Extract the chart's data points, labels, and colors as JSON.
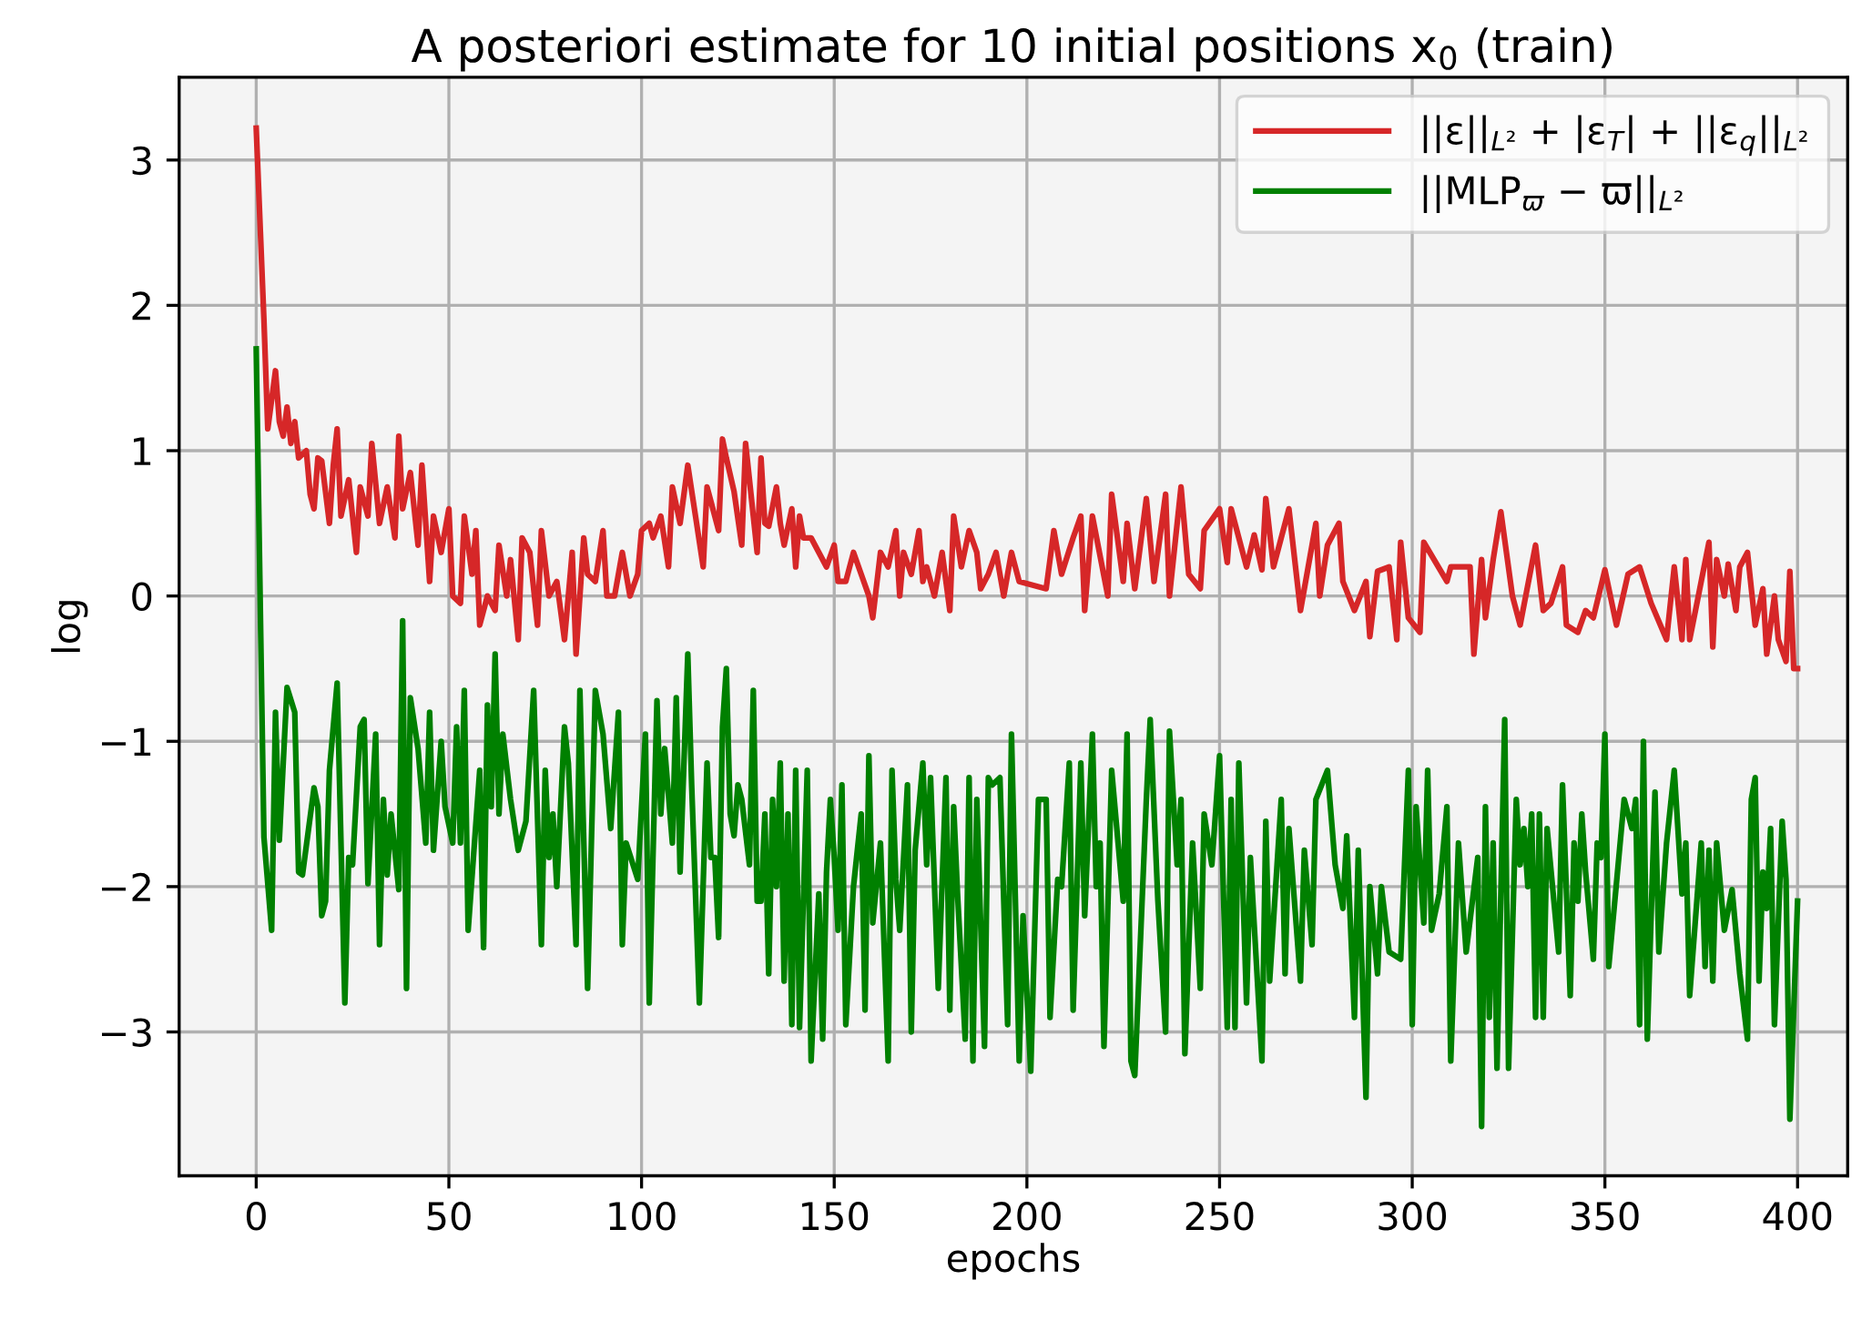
{
  "chart_data": {
    "type": "line",
    "title": "A posteriori estimate for 10 initial positions x$_{0}$ (train)",
    "xlabel": "epochs",
    "ylabel": "log",
    "xlim": [
      -20,
      413
    ],
    "ylim": [
      -3.99,
      3.57
    ],
    "xticks": [
      0,
      50,
      100,
      150,
      200,
      250,
      300,
      350,
      400
    ],
    "yticks": [
      {
        "value": -3,
        "label": "−3"
      },
      {
        "value": -2,
        "label": "−2"
      },
      {
        "value": -1,
        "label": "−1"
      },
      0,
      1,
      2,
      3
    ],
    "grid": true,
    "legend": "top right",
    "line_style": "solid",
    "marker": "none",
    "series": [
      {
        "name": "||ε||$_{L²}$ + |ε$_{T}$| + ||ε$_{q}$||$_{L²}$",
        "color": "#d62728",
        "x": [
          0,
          2,
          3,
          5,
          6,
          7,
          8,
          9,
          10,
          11,
          13,
          14,
          15,
          16,
          17,
          19,
          20,
          21,
          22,
          24,
          26,
          27,
          29,
          30,
          32,
          34,
          36,
          37,
          38,
          40,
          42,
          43,
          45,
          46,
          48,
          50,
          51,
          53,
          54,
          56,
          57,
          58,
          60,
          62,
          63,
          65,
          66,
          68,
          69,
          71,
          73,
          74,
          76,
          78,
          80,
          82,
          83,
          85,
          86,
          88,
          90,
          91,
          93,
          95,
          97,
          99,
          100,
          102,
          103,
          105,
          107,
          108,
          110,
          112,
          114,
          116,
          117,
          118,
          120,
          121,
          122,
          124,
          126,
          127,
          129,
          130,
          131,
          132,
          133,
          135,
          136,
          137,
          139,
          140,
          141,
          142,
          144,
          146,
          148,
          150,
          151,
          153,
          155,
          157,
          159,
          160,
          162,
          164,
          166,
          167,
          168,
          170,
          172,
          173,
          174,
          176,
          178,
          180,
          181,
          183,
          185,
          187,
          188,
          190,
          192,
          194,
          196,
          198,
          205,
          207,
          209,
          212,
          214,
          215,
          217,
          221,
          222,
          225,
          226,
          228,
          231,
          233,
          236,
          237,
          240,
          242,
          245,
          246,
          250,
          252,
          253,
          257,
          259,
          261,
          262,
          264,
          268,
          271,
          275,
          276,
          278,
          281,
          282,
          285,
          288,
          289,
          291,
          294,
          296,
          297,
          299,
          302,
          303,
          309,
          310,
          312,
          315,
          316,
          318,
          319,
          321,
          323,
          326,
          328,
          332,
          334,
          336,
          339,
          340,
          343,
          345,
          347,
          350,
          353,
          356,
          359,
          362,
          366,
          368,
          370,
          371,
          372,
          375,
          377,
          378,
          379,
          381,
          382,
          384,
          385,
          387,
          389,
          391,
          392,
          394,
          395,
          397,
          398,
          399,
          400
        ],
        "values": [
          3.22,
          1.9,
          1.15,
          1.55,
          1.2,
          1.1,
          1.3,
          1.05,
          1.2,
          0.95,
          1.0,
          0.7,
          0.6,
          0.95,
          0.93,
          0.5,
          0.9,
          1.15,
          0.55,
          0.8,
          0.3,
          0.75,
          0.55,
          1.05,
          0.5,
          0.75,
          0.4,
          1.1,
          0.6,
          0.85,
          0.35,
          0.9,
          0.1,
          0.55,
          0.3,
          0.6,
          0.0,
          -0.05,
          0.55,
          0.15,
          0.45,
          -0.2,
          0.0,
          -0.1,
          0.35,
          0.0,
          0.25,
          -0.3,
          0.4,
          0.3,
          -0.2,
          0.45,
          0.0,
          0.1,
          -0.3,
          0.3,
          -0.4,
          0.4,
          0.15,
          0.1,
          0.45,
          0.0,
          0.0,
          0.3,
          0.0,
          0.15,
          0.45,
          0.5,
          0.4,
          0.55,
          0.2,
          0.75,
          0.5,
          0.9,
          0.55,
          0.2,
          0.75,
          0.65,
          0.45,
          1.08,
          0.95,
          0.72,
          0.35,
          1.05,
          0.55,
          0.3,
          0.95,
          0.5,
          0.48,
          0.75,
          0.5,
          0.35,
          0.6,
          0.2,
          0.55,
          0.4,
          0.4,
          0.3,
          0.2,
          0.35,
          0.1,
          0.1,
          0.3,
          0.15,
          0.0,
          -0.15,
          0.3,
          0.2,
          0.45,
          0.0,
          0.3,
          0.15,
          0.45,
          0.1,
          0.2,
          0.0,
          0.3,
          -0.1,
          0.55,
          0.2,
          0.45,
          0.3,
          0.05,
          0.15,
          0.3,
          0.0,
          0.3,
          0.1,
          0.05,
          0.45,
          0.15,
          0.4,
          0.55,
          -0.1,
          0.55,
          0.0,
          0.7,
          0.1,
          0.5,
          0.05,
          0.67,
          0.1,
          0.7,
          0.0,
          0.75,
          0.15,
          0.05,
          0.45,
          0.6,
          0.23,
          0.6,
          0.2,
          0.42,
          0.18,
          0.67,
          0.2,
          0.6,
          -0.1,
          0.5,
          0.0,
          0.35,
          0.5,
          0.1,
          -0.1,
          0.1,
          -0.28,
          0.17,
          0.2,
          -0.3,
          0.37,
          -0.15,
          -0.25,
          0.37,
          0.1,
          0.2,
          0.2,
          0.2,
          -0.4,
          0.25,
          -0.15,
          0.25,
          0.58,
          0.0,
          -0.2,
          0.35,
          -0.1,
          -0.05,
          0.2,
          -0.2,
          -0.25,
          -0.1,
          -0.15,
          0.18,
          -0.2,
          0.15,
          0.2,
          -0.05,
          -0.3,
          0.2,
          -0.3,
          0.25,
          -0.3,
          0.1,
          0.37,
          -0.35,
          0.25,
          0.0,
          0.22,
          -0.1,
          0.2,
          0.3,
          -0.2,
          0.05,
          -0.4,
          0.0,
          -0.3,
          -0.45,
          0.17,
          -0.5,
          -0.5
        ]
      },
      {
        "name": "||MLP$_{ϖ}$ − ϖ||$_{L²}$",
        "color": "#008000",
        "x": [
          0,
          2,
          4,
          5,
          6,
          8,
          10,
          11,
          12,
          15,
          16,
          17,
          18,
          19,
          21,
          23,
          24,
          25,
          27,
          28,
          29,
          31,
          32,
          33,
          34,
          35,
          37,
          38,
          39,
          40,
          42,
          44,
          45,
          46,
          48,
          49,
          51,
          52,
          53,
          54,
          55,
          58,
          59,
          60,
          61,
          62,
          63,
          64,
          66,
          68,
          70,
          72,
          74,
          75,
          76,
          77,
          78,
          80,
          81,
          83,
          84,
          86,
          88,
          90,
          92,
          94,
          95,
          96,
          99,
          101,
          102,
          104,
          105,
          106,
          108,
          109,
          110,
          112,
          113,
          115,
          117,
          118,
          119,
          120,
          121,
          122,
          123,
          124,
          125,
          126,
          128,
          129,
          130,
          131,
          132,
          133,
          134,
          135,
          136,
          137,
          138,
          139,
          140,
          141,
          143,
          144,
          146,
          147,
          148,
          149,
          150,
          151,
          152,
          153,
          155,
          157,
          158,
          159,
          160,
          162,
          164,
          165,
          166,
          167,
          169,
          170,
          171,
          173,
          174,
          175,
          177,
          179,
          180,
          181,
          182,
          184,
          185,
          186,
          187,
          189,
          190,
          191,
          193,
          195,
          196,
          198,
          199,
          201,
          203,
          205,
          206,
          208,
          209,
          211,
          212,
          214,
          215,
          217,
          218,
          219,
          220,
          222,
          225,
          226,
          227,
          228,
          231,
          232,
          234,
          236,
          237,
          239,
          240,
          241,
          243,
          245,
          246,
          248,
          250,
          252,
          253,
          254,
          255,
          257,
          258,
          261,
          262,
          263,
          266,
          267,
          268,
          271,
          272,
          274,
          275,
          278,
          280,
          282,
          283,
          285,
          286,
          288,
          289,
          291,
          292,
          294,
          297,
          299,
          300,
          301,
          303,
          304,
          305,
          307,
          309,
          310,
          312,
          314,
          317,
          318,
          319,
          320,
          321,
          322,
          324,
          325,
          327,
          328,
          329,
          330,
          331,
          332,
          333,
          334,
          335,
          338,
          339,
          341,
          342,
          343,
          344,
          345,
          347,
          348,
          349,
          350,
          351,
          355,
          357,
          358,
          359,
          360,
          361,
          363,
          364,
          366,
          368,
          370,
          371,
          372,
          375,
          376,
          377,
          378,
          379,
          381,
          383,
          385,
          387,
          388,
          389,
          390,
          391,
          392,
          393,
          394,
          396,
          397,
          398,
          400
        ],
        "values": [
          1.7,
          -1.66,
          -2.3,
          -0.8,
          -1.68,
          -0.63,
          -0.8,
          -1.9,
          -1.92,
          -1.32,
          -1.45,
          -2.2,
          -2.1,
          -1.2,
          -0.6,
          -2.8,
          -1.8,
          -1.85,
          -0.9,
          -0.85,
          -1.98,
          -0.95,
          -2.4,
          -1.4,
          -1.92,
          -1.5,
          -2.02,
          -0.17,
          -2.7,
          -0.7,
          -1.05,
          -1.7,
          -0.8,
          -1.75,
          -1.0,
          -1.45,
          -1.7,
          -0.9,
          -1.7,
          -0.65,
          -2.3,
          -1.2,
          -2.42,
          -0.75,
          -1.45,
          -0.4,
          -1.5,
          -0.95,
          -1.4,
          -1.75,
          -1.55,
          -0.65,
          -2.4,
          -1.2,
          -1.8,
          -1.5,
          -2.0,
          -0.9,
          -1.15,
          -2.4,
          -0.65,
          -2.7,
          -0.65,
          -0.95,
          -1.6,
          -0.8,
          -2.4,
          -1.7,
          -1.95,
          -0.95,
          -2.8,
          -0.72,
          -1.5,
          -1.05,
          -1.7,
          -0.7,
          -1.9,
          -0.4,
          -1.3,
          -2.8,
          -1.15,
          -1.8,
          -1.8,
          -2.35,
          -0.9,
          -0.5,
          -1.5,
          -1.65,
          -1.3,
          -1.4,
          -1.85,
          -0.65,
          -2.1,
          -2.1,
          -1.5,
          -2.6,
          -1.4,
          -2.0,
          -1.15,
          -2.65,
          -1.5,
          -2.95,
          -1.2,
          -2.97,
          -1.2,
          -3.2,
          -2.05,
          -3.05,
          -1.9,
          -1.4,
          -1.8,
          -2.3,
          -1.3,
          -2.95,
          -2.0,
          -1.5,
          -2.85,
          -1.1,
          -2.25,
          -1.7,
          -3.2,
          -1.2,
          -1.95,
          -2.3,
          -1.3,
          -3.0,
          -1.75,
          -1.15,
          -1.85,
          -1.25,
          -2.7,
          -1.25,
          -2.85,
          -1.45,
          -2.05,
          -3.05,
          -1.25,
          -3.2,
          -1.4,
          -3.1,
          -1.25,
          -1.3,
          -1.25,
          -2.95,
          -0.95,
          -3.2,
          -2.2,
          -3.27,
          -1.4,
          -1.4,
          -2.9,
          -1.95,
          -2.0,
          -1.15,
          -2.85,
          -1.15,
          -2.2,
          -0.95,
          -2.0,
          -1.7,
          -3.1,
          -1.2,
          -2.1,
          -0.95,
          -3.2,
          -3.3,
          -1.4,
          -0.85,
          -2.1,
          -3.0,
          -0.93,
          -1.85,
          -1.4,
          -3.15,
          -1.7,
          -2.7,
          -1.5,
          -1.85,
          -1.1,
          -2.97,
          -1.4,
          -2.97,
          -1.15,
          -2.8,
          -1.8,
          -3.2,
          -1.55,
          -2.65,
          -1.4,
          -2.6,
          -1.6,
          -2.65,
          -1.75,
          -2.4,
          -1.4,
          -1.2,
          -1.85,
          -2.15,
          -1.65,
          -2.9,
          -1.75,
          -3.45,
          -2.0,
          -2.6,
          -2.0,
          -2.45,
          -2.5,
          -1.2,
          -2.95,
          -1.45,
          -2.25,
          -1.2,
          -2.3,
          -2.05,
          -1.45,
          -3.2,
          -1.7,
          -2.45,
          -1.8,
          -3.65,
          -1.45,
          -2.9,
          -1.7,
          -3.25,
          -0.85,
          -3.25,
          -1.4,
          -1.85,
          -1.6,
          -2.0,
          -1.5,
          -2.9,
          -1.5,
          -2.9,
          -1.6,
          -2.45,
          -1.3,
          -2.75,
          -1.7,
          -2.1,
          -1.5,
          -1.9,
          -2.5,
          -1.7,
          -1.8,
          -0.95,
          -2.55,
          -1.4,
          -1.6,
          -1.4,
          -2.95,
          -1.0,
          -3.05,
          -1.35,
          -2.45,
          -1.7,
          -1.2,
          -2.05,
          -1.7,
          -2.75,
          -1.7,
          -2.55,
          -1.75,
          -2.65,
          -1.7,
          -2.3,
          -2.02,
          -2.6,
          -3.05,
          -1.4,
          -1.25,
          -2.65,
          -1.9,
          -2.15,
          -1.6,
          -2.95,
          -1.55,
          -1.95,
          -3.6,
          -2.1
        ]
      }
    ]
  }
}
